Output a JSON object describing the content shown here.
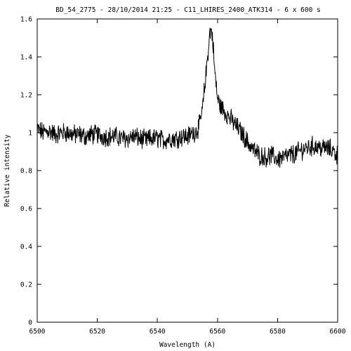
{
  "chart_data": {
    "type": "line",
    "title": "BD_54_2775 - 28/10/2014 21:25 - C11_LHIRES_2400_ATK314 - 6 x 600 s",
    "xlabel": "Wavelength (A)",
    "ylabel": "Relative intensity",
    "xlim": [
      6500,
      6600
    ],
    "ylim": [
      0,
      1.6
    ],
    "xticks": [
      6500,
      6520,
      6540,
      6560,
      6580,
      6600
    ],
    "yticks": [
      0,
      0.2,
      0.4,
      0.6,
      0.8,
      1,
      1.2,
      1.4,
      1.6
    ],
    "xtick_labels": [
      "6500",
      "6520",
      "6540",
      "6560",
      "6580",
      "6600"
    ],
    "ytick_labels": [
      "0",
      "0.2",
      "0.4",
      "0.6",
      "0.8",
      "1",
      "1.2",
      "1.4",
      "1.6"
    ],
    "grid": false,
    "series": [
      {
        "x": [
          6500,
          6502,
          6504,
          6506,
          6508,
          6510,
          6512,
          6514,
          6516,
          6518,
          6520,
          6522,
          6524,
          6526,
          6528,
          6530,
          6532,
          6534,
          6536,
          6538,
          6540,
          6542,
          6544,
          6546,
          6548,
          6550,
          6551,
          6552,
          6553,
          6554,
          6555,
          6556,
          6557,
          6557.5,
          6558,
          6558.5,
          6559,
          6560,
          6561,
          6562,
          6563,
          6564,
          6565,
          6566,
          6567,
          6568,
          6570,
          6572,
          6574,
          6576,
          6578,
          6580,
          6582,
          6584,
          6586,
          6588,
          6590,
          6592,
          6594,
          6596,
          6598,
          6600
        ],
        "y": [
          1.02,
          1.0,
          1.01,
          0.99,
          1.0,
          1.0,
          0.99,
          0.99,
          0.98,
          0.99,
          0.99,
          0.98,
          0.98,
          0.98,
          0.97,
          0.97,
          0.98,
          0.97,
          0.96,
          0.97,
          0.97,
          0.96,
          0.97,
          0.97,
          0.98,
          0.98,
          0.99,
          1.0,
          1.01,
          1.04,
          1.12,
          1.28,
          1.45,
          1.53,
          1.54,
          1.48,
          1.34,
          1.18,
          1.14,
          1.12,
          1.1,
          1.08,
          1.06,
          1.04,
          1.02,
          1.0,
          0.95,
          0.91,
          0.88,
          0.87,
          0.88,
          0.86,
          0.87,
          0.88,
          0.89,
          0.91,
          0.92,
          0.93,
          0.92,
          0.92,
          0.91,
          0.88
        ]
      }
    ]
  }
}
